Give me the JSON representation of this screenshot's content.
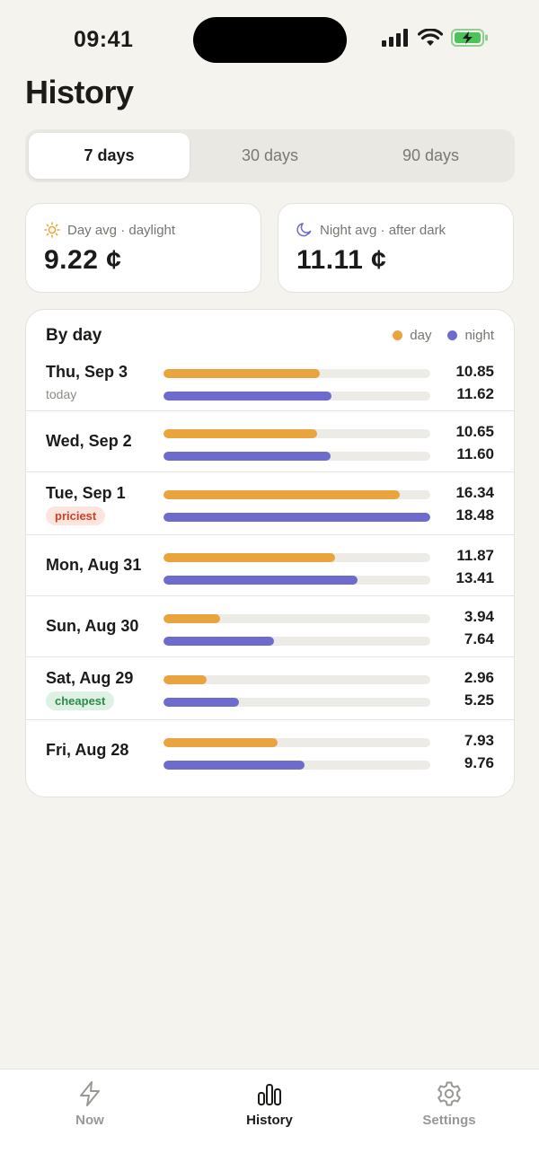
{
  "status_bar": {
    "time": "09:41"
  },
  "page": {
    "title": "History"
  },
  "range_tabs": [
    {
      "label": "7 days",
      "active": true
    },
    {
      "label": "30 days",
      "active": false
    },
    {
      "label": "90 days",
      "active": false
    }
  ],
  "stats": {
    "day": {
      "label": "Day avg · daylight",
      "value": "9.22 ¢",
      "icon": "sun-icon",
      "color": "#eaa43d"
    },
    "night": {
      "label": "Night avg · after dark",
      "value": "11.11 ¢",
      "icon": "moon-icon",
      "color": "#6e6bcf"
    }
  },
  "by_day": {
    "title": "By day",
    "legend": {
      "day": "day",
      "night": "night"
    },
    "max_value": 18.48,
    "rows": [
      {
        "date": "Thu, Sep 3",
        "sub": "today",
        "badge": "",
        "day": "10.85",
        "night": "11.62"
      },
      {
        "date": "Wed, Sep 2",
        "sub": "",
        "badge": "",
        "day": "10.65",
        "night": "11.60"
      },
      {
        "date": "Tue, Sep 1",
        "sub": "",
        "badge": "priciest",
        "day": "16.34",
        "night": "18.48"
      },
      {
        "date": "Mon, Aug 31",
        "sub": "",
        "badge": "",
        "day": "11.87",
        "night": "13.41"
      },
      {
        "date": "Sun, Aug 30",
        "sub": "",
        "badge": "",
        "day": "3.94",
        "night": "7.64"
      },
      {
        "date": "Sat, Aug 29",
        "sub": "",
        "badge": "cheapest",
        "day": "2.96",
        "night": "5.25"
      },
      {
        "date": "Fri, Aug 28",
        "sub": "",
        "badge": "",
        "day": "7.93",
        "night": "9.76"
      }
    ]
  },
  "tabbar": [
    {
      "label": "Now",
      "icon": "bolt-icon",
      "active": false
    },
    {
      "label": "History",
      "icon": "bar-chart-icon",
      "active": true
    },
    {
      "label": "Settings",
      "icon": "gear-icon",
      "active": false
    }
  ]
}
